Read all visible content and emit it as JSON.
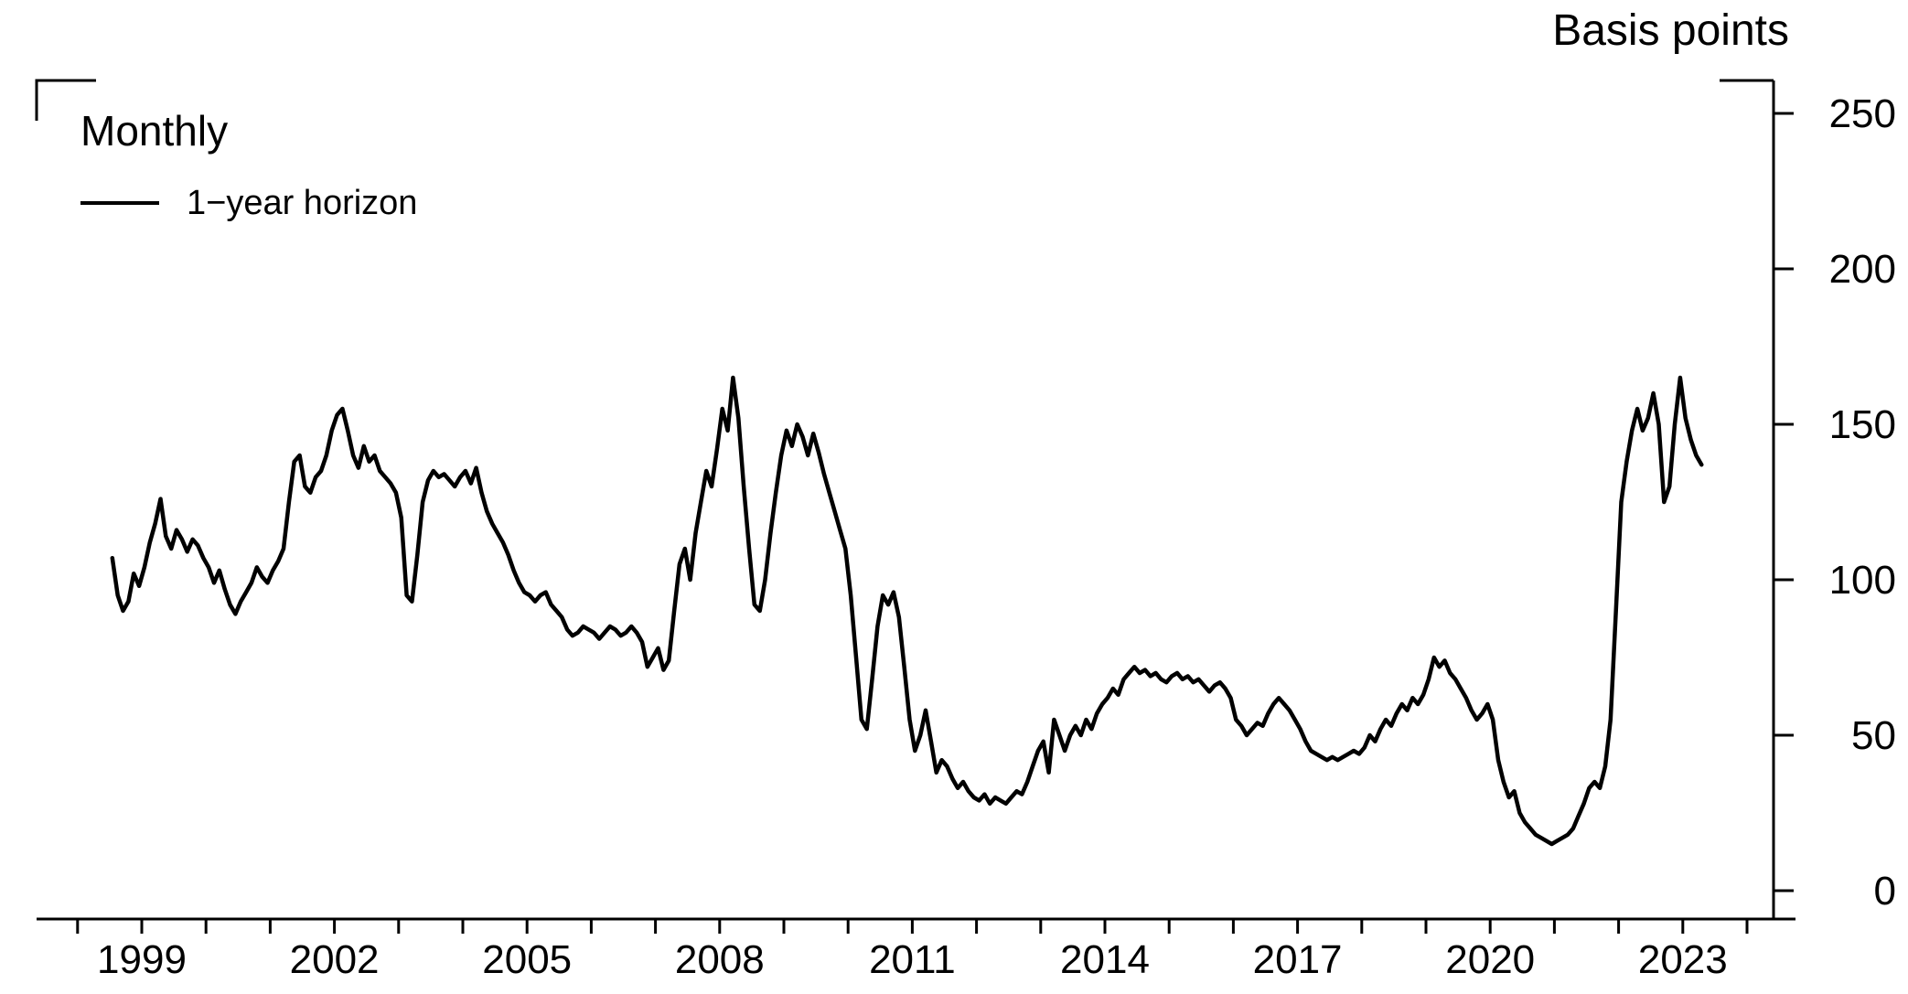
{
  "colors": {
    "background": "#ffffff",
    "axis": "#000000",
    "text": "#000000",
    "line": "#000000"
  },
  "chart_data": {
    "type": "line",
    "title": "",
    "legend": {
      "heading": "Monthly",
      "entries": [
        {
          "label": "1−year horizon",
          "color": "#000000"
        }
      ]
    },
    "y_axis": {
      "label": "Basis points",
      "side": "right",
      "min": 0,
      "max": 250,
      "tick_step": 50,
      "tick_values": [
        0,
        50,
        100,
        150,
        200,
        250
      ]
    },
    "x_axis": {
      "label": "",
      "labeled_years": [
        1999,
        2002,
        2005,
        2008,
        2011,
        2014,
        2017,
        2020,
        2023
      ],
      "minor_tick_first_year": 1998,
      "minor_tick_last_year": 2024
    },
    "series": [
      {
        "name": "1−year horizon",
        "color": "#000000",
        "frequency": "monthly",
        "start_year": 1998,
        "start_month": 7,
        "values": [
          107,
          95,
          90,
          93,
          102,
          98,
          104,
          112,
          118,
          126,
          114,
          110,
          116,
          113,
          109,
          113,
          111,
          107,
          104,
          99,
          103,
          97,
          92,
          89,
          93,
          96,
          99,
          104,
          101,
          99,
          103,
          106,
          110,
          125,
          138,
          140,
          130,
          128,
          133,
          135,
          140,
          148,
          153,
          155,
          148,
          140,
          136,
          143,
          138,
          140,
          135,
          133,
          131,
          128,
          120,
          95,
          93,
          108,
          125,
          132,
          135,
          133,
          134,
          132,
          130,
          133,
          135,
          131,
          136,
          128,
          122,
          118,
          115,
          112,
          108,
          103,
          99,
          96,
          95,
          93,
          95,
          96,
          92,
          90,
          88,
          84,
          82,
          83,
          85,
          84,
          83,
          81,
          83,
          85,
          84,
          82,
          83,
          85,
          83,
          80,
          72,
          75,
          78,
          71,
          74,
          90,
          105,
          110,
          100,
          115,
          125,
          135,
          130,
          142,
          155,
          148,
          165,
          152,
          130,
          110,
          92,
          90,
          100,
          115,
          128,
          140,
          148,
          143,
          150,
          146,
          140,
          147,
          141,
          134,
          128,
          122,
          116,
          110,
          95,
          75,
          55,
          52,
          68,
          85,
          95,
          92,
          96,
          88,
          72,
          55,
          45,
          50,
          58,
          48,
          38,
          42,
          40,
          36,
          33,
          35,
          32,
          30,
          29,
          31,
          28,
          30,
          29,
          28,
          30,
          32,
          31,
          35,
          40,
          45,
          48,
          38,
          55,
          50,
          45,
          50,
          53,
          50,
          55,
          52,
          57,
          60,
          62,
          65,
          63,
          68,
          70,
          72,
          70,
          71,
          69,
          70,
          68,
          67,
          69,
          70,
          68,
          69,
          67,
          68,
          66,
          64,
          66,
          67,
          65,
          62,
          55,
          53,
          50,
          52,
          54,
          53,
          57,
          60,
          62,
          60,
          58,
          55,
          52,
          48,
          45,
          44,
          43,
          42,
          43,
          42,
          43,
          44,
          45,
          44,
          46,
          50,
          48,
          52,
          55,
          53,
          57,
          60,
          58,
          62,
          60,
          63,
          68,
          75,
          72,
          74,
          70,
          68,
          65,
          62,
          58,
          55,
          57,
          60,
          55,
          42,
          35,
          30,
          32,
          25,
          22,
          20,
          18,
          17,
          16,
          15,
          16,
          17,
          18,
          20,
          24,
          28,
          33,
          35,
          33,
          40,
          55,
          90,
          125,
          138,
          148,
          155,
          148,
          152,
          160,
          150,
          125,
          130,
          150,
          165,
          152,
          145,
          140,
          137
        ]
      }
    ]
  }
}
